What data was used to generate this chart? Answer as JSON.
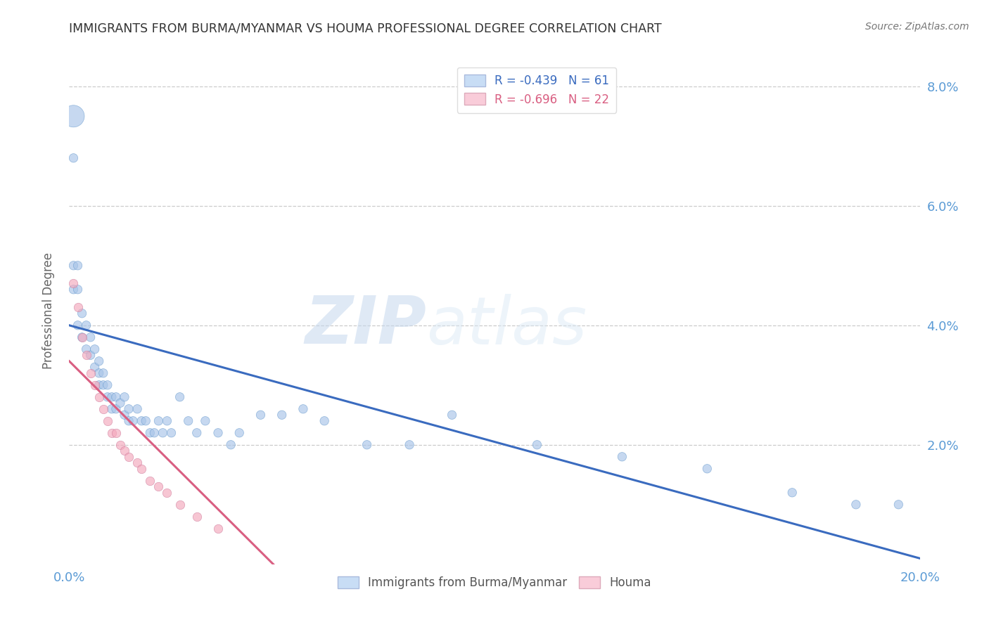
{
  "title": "IMMIGRANTS FROM BURMA/MYANMAR VS HOUMA PROFESSIONAL DEGREE CORRELATION CHART",
  "source": "Source: ZipAtlas.com",
  "ylabel": "Professional Degree",
  "xlim": [
    0.0,
    0.2
  ],
  "ylim": [
    0.0,
    0.085
  ],
  "legend_blue_r": "R = -0.439",
  "legend_blue_n": "N = 61",
  "legend_pink_r": "R = -0.696",
  "legend_pink_n": "N = 22",
  "blue_color": "#a8c4e8",
  "pink_color": "#f4a8bc",
  "blue_line_color": "#3a6bbf",
  "pink_line_color": "#d95f82",
  "blue_scatter_x": [
    0.001,
    0.001,
    0.001,
    0.001,
    0.002,
    0.002,
    0.002,
    0.003,
    0.003,
    0.004,
    0.004,
    0.005,
    0.005,
    0.006,
    0.006,
    0.007,
    0.007,
    0.007,
    0.008,
    0.008,
    0.009,
    0.009,
    0.01,
    0.01,
    0.011,
    0.011,
    0.012,
    0.013,
    0.013,
    0.014,
    0.014,
    0.015,
    0.016,
    0.017,
    0.018,
    0.019,
    0.02,
    0.021,
    0.022,
    0.023,
    0.024,
    0.026,
    0.028,
    0.03,
    0.032,
    0.035,
    0.038,
    0.04,
    0.045,
    0.05,
    0.055,
    0.06,
    0.07,
    0.08,
    0.09,
    0.11,
    0.13,
    0.15,
    0.17,
    0.185,
    0.195
  ],
  "blue_scatter_y": [
    0.075,
    0.068,
    0.05,
    0.046,
    0.05,
    0.046,
    0.04,
    0.042,
    0.038,
    0.04,
    0.036,
    0.038,
    0.035,
    0.036,
    0.033,
    0.034,
    0.032,
    0.03,
    0.032,
    0.03,
    0.03,
    0.028,
    0.028,
    0.026,
    0.028,
    0.026,
    0.027,
    0.028,
    0.025,
    0.026,
    0.024,
    0.024,
    0.026,
    0.024,
    0.024,
    0.022,
    0.022,
    0.024,
    0.022,
    0.024,
    0.022,
    0.028,
    0.024,
    0.022,
    0.024,
    0.022,
    0.02,
    0.022,
    0.025,
    0.025,
    0.026,
    0.024,
    0.02,
    0.02,
    0.025,
    0.02,
    0.018,
    0.016,
    0.012,
    0.01,
    0.01
  ],
  "blue_scatter_sizes": [
    500,
    80,
    80,
    80,
    80,
    80,
    80,
    80,
    80,
    80,
    80,
    80,
    80,
    80,
    80,
    80,
    80,
    80,
    80,
    80,
    80,
    80,
    80,
    80,
    80,
    80,
    80,
    80,
    80,
    80,
    80,
    80,
    80,
    80,
    80,
    80,
    80,
    80,
    80,
    80,
    80,
    80,
    80,
    80,
    80,
    80,
    80,
    80,
    80,
    80,
    80,
    80,
    80,
    80,
    80,
    80,
    80,
    80,
    80,
    80,
    80
  ],
  "pink_scatter_x": [
    0.001,
    0.002,
    0.003,
    0.004,
    0.005,
    0.006,
    0.007,
    0.008,
    0.009,
    0.01,
    0.011,
    0.012,
    0.013,
    0.014,
    0.016,
    0.017,
    0.019,
    0.021,
    0.023,
    0.026,
    0.03,
    0.035
  ],
  "pink_scatter_y": [
    0.047,
    0.043,
    0.038,
    0.035,
    0.032,
    0.03,
    0.028,
    0.026,
    0.024,
    0.022,
    0.022,
    0.02,
    0.019,
    0.018,
    0.017,
    0.016,
    0.014,
    0.013,
    0.012,
    0.01,
    0.008,
    0.006
  ],
  "blue_line_x0": 0.0,
  "blue_line_y0": 0.04,
  "blue_line_x1": 0.2,
  "blue_line_y1": 0.001,
  "pink_line_x0": 0.0,
  "pink_line_y0": 0.034,
  "pink_line_x1": 0.048,
  "pink_line_y1": 0.0,
  "watermark_zip": "ZIP",
  "watermark_atlas": "atlas",
  "background_color": "#ffffff",
  "grid_color": "#cccccc",
  "title_color": "#333333",
  "axis_tick_color": "#5b9bd5",
  "ylabel_color": "#666666",
  "scatter_alpha": 0.65,
  "legend_box_color": "#c8ddf5",
  "legend_pink_box_color": "#f9ccd9"
}
